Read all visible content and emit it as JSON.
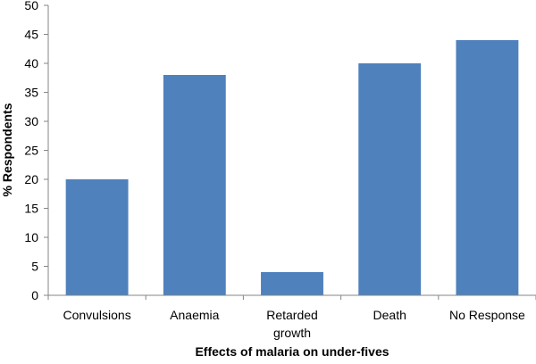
{
  "chart_data": {
    "type": "bar",
    "title": "",
    "xlabel": "Effects of malaria on under-fives",
    "ylabel": "% Respondents",
    "categories": [
      [
        "Convulsions"
      ],
      [
        "Anaemia"
      ],
      [
        "Retarded",
        "growth"
      ],
      [
        "Death"
      ],
      [
        "No Response"
      ]
    ],
    "values": [
      20,
      38,
      4,
      40,
      44
    ],
    "ylim": [
      0,
      50
    ],
    "yticks": [
      "0",
      "5",
      "10",
      "15",
      "20",
      "25",
      "30",
      "35",
      "40",
      "45",
      "50"
    ],
    "grid": false,
    "legend": "none",
    "bar_color": "#4F81BD",
    "axis_color": "#868686"
  }
}
